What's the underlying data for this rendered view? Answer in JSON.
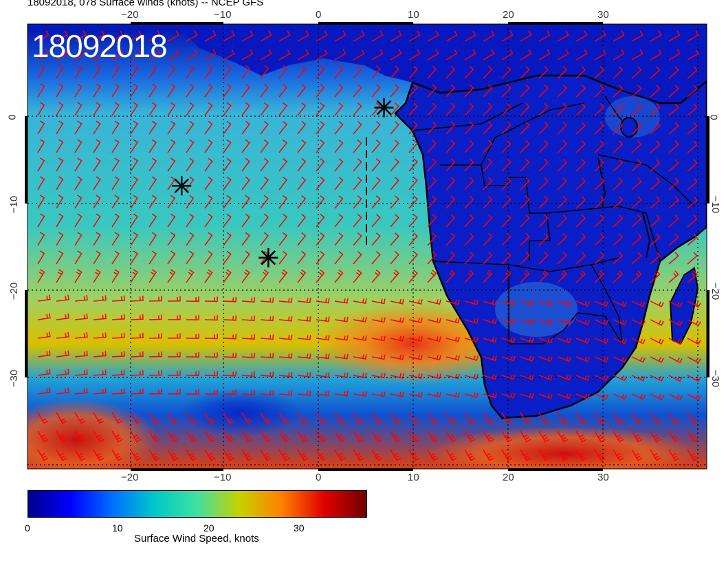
{
  "title": "18092018, 078 Surface winds (knots) -- NCEP GFS",
  "stamp": "18092018",
  "lon_ticks_top": [
    "−20",
    "−10",
    "0",
    "10",
    "20",
    "30"
  ],
  "lon_ticks_bottom": [
    "−20",
    "−10",
    "0",
    "10",
    "20",
    "30"
  ],
  "lat_ticks_left": [
    "0",
    "−10",
    "−20",
    "−30"
  ],
  "lat_ticks_right": [
    "0",
    "−10",
    "−20",
    "−30"
  ],
  "map_extent": {
    "lon": [
      -30.5,
      40
    ],
    "lat": [
      -40,
      9.5
    ]
  },
  "storm_markers": [
    {
      "lon": 6.5,
      "lat": 0.2
    },
    {
      "lon": -14.5,
      "lat": -8.5
    },
    {
      "lon": -5.5,
      "lat": -16.5
    }
  ],
  "colorbar": {
    "title": "Surface Wind Speed, knots",
    "tick_labels": [
      "0",
      "10",
      "20",
      "30"
    ],
    "range": [
      0,
      37
    ],
    "colors": [
      "#00008b",
      "#0000ff",
      "#0070ff",
      "#00c8c8",
      "#40e0a0",
      "#c8d000",
      "#ff8000",
      "#e00000",
      "#700000"
    ]
  },
  "wind_barb_color": "#ff0000"
}
